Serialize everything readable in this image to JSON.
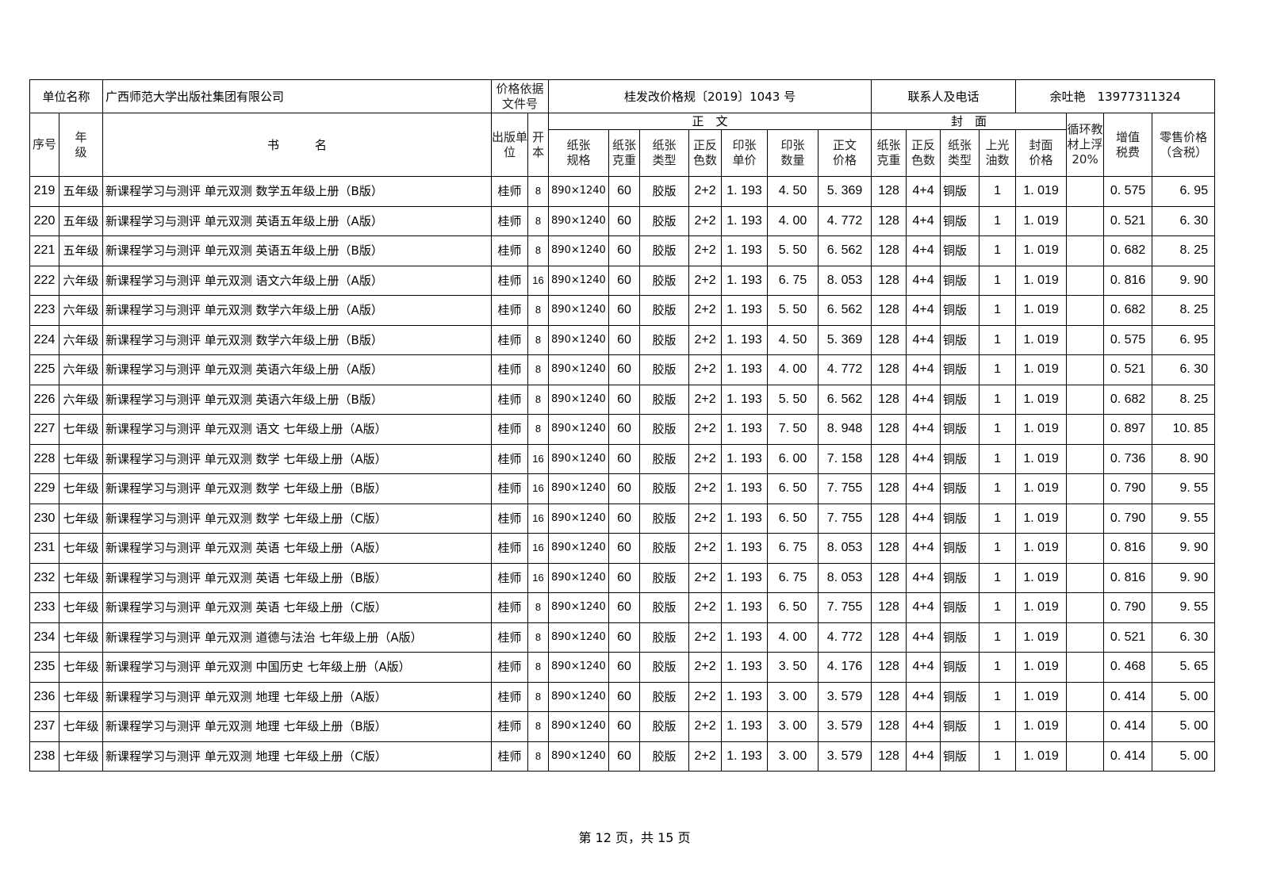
{
  "header": {
    "unit_label": "单位名称",
    "unit_value": "广西师范大学出版社集团有限公司",
    "price_basis_label": "价格依据文件号",
    "price_basis_value": "桂发改价格规〔2019〕1043 号",
    "contact_label": "联系人及电话",
    "contact_value": "余吐艳　13977311324"
  },
  "columns": {
    "seq": "序号",
    "grade": "年级",
    "title": "书　　　名",
    "publisher": "出版单位",
    "format": "开本",
    "body_group": "正　文",
    "cover_group": "封　面",
    "paper_size": "纸张规格",
    "paper_weight": "纸张克重",
    "paper_type": "纸张类型",
    "colors": "正反色数",
    "sheet_price": "印张单价",
    "sheet_count": "印张数量",
    "body_price": "正文价格",
    "cover_weight": "纸张克重",
    "cover_colors": "正反色数",
    "cover_type": "纸张类型",
    "varnish": "上光油数",
    "cover_price": "封面价格",
    "recycle": "循环教材上浮20%",
    "vat": "增值税费",
    "retail": "零售价格（含税）"
  },
  "rows": [
    [
      "219",
      "五年级",
      "新课程学习与测评  单元双测  数学五年级上册（B版）",
      "桂师",
      "8",
      "890×1240",
      "60",
      "胶版",
      "2+2",
      "1. 193",
      "4. 50",
      "5. 369",
      "128",
      "4+4",
      "铜版",
      "1",
      "1. 019",
      "",
      "0. 575",
      "6. 95"
    ],
    [
      "220",
      "五年级",
      "新课程学习与测评  单元双测  英语五年级上册（A版）",
      "桂师",
      "8",
      "890×1240",
      "60",
      "胶版",
      "2+2",
      "1. 193",
      "4. 00",
      "4. 772",
      "128",
      "4+4",
      "铜版",
      "1",
      "1. 019",
      "",
      "0. 521",
      "6. 30"
    ],
    [
      "221",
      "五年级",
      "新课程学习与测评  单元双测  英语五年级上册（B版）",
      "桂师",
      "8",
      "890×1240",
      "60",
      "胶版",
      "2+2",
      "1. 193",
      "5. 50",
      "6. 562",
      "128",
      "4+4",
      "铜版",
      "1",
      "1. 019",
      "",
      "0. 682",
      "8. 25"
    ],
    [
      "222",
      "六年级",
      "新课程学习与测评  单元双测  语文六年级上册（A版）",
      "桂师",
      "16",
      "890×1240",
      "60",
      "胶版",
      "2+2",
      "1. 193",
      "6. 75",
      "8. 053",
      "128",
      "4+4",
      "铜版",
      "1",
      "1. 019",
      "",
      "0. 816",
      "9. 90"
    ],
    [
      "223",
      "六年级",
      "新课程学习与测评  单元双测  数学六年级上册（A版）",
      "桂师",
      "8",
      "890×1240",
      "60",
      "胶版",
      "2+2",
      "1. 193",
      "5. 50",
      "6. 562",
      "128",
      "4+4",
      "铜版",
      "1",
      "1. 019",
      "",
      "0. 682",
      "8. 25"
    ],
    [
      "224",
      "六年级",
      "新课程学习与测评  单元双测  数学六年级上册（B版）",
      "桂师",
      "8",
      "890×1240",
      "60",
      "胶版",
      "2+2",
      "1. 193",
      "4. 50",
      "5. 369",
      "128",
      "4+4",
      "铜版",
      "1",
      "1. 019",
      "",
      "0. 575",
      "6. 95"
    ],
    [
      "225",
      "六年级",
      "新课程学习与测评  单元双测  英语六年级上册（A版）",
      "桂师",
      "8",
      "890×1240",
      "60",
      "胶版",
      "2+2",
      "1. 193",
      "4. 00",
      "4. 772",
      "128",
      "4+4",
      "铜版",
      "1",
      "1. 019",
      "",
      "0. 521",
      "6. 30"
    ],
    [
      "226",
      "六年级",
      "新课程学习与测评  单元双测  英语六年级上册（B版）",
      "桂师",
      "8",
      "890×1240",
      "60",
      "胶版",
      "2+2",
      "1. 193",
      "5. 50",
      "6. 562",
      "128",
      "4+4",
      "铜版",
      "1",
      "1. 019",
      "",
      "0. 682",
      "8. 25"
    ],
    [
      "227",
      "七年级",
      "新课程学习与测评  单元双测  语文  七年级上册（A版）",
      "桂师",
      "8",
      "890×1240",
      "60",
      "胶版",
      "2+2",
      "1. 193",
      "7. 50",
      "8. 948",
      "128",
      "4+4",
      "铜版",
      "1",
      "1. 019",
      "",
      "0. 897",
      "10. 85"
    ],
    [
      "228",
      "七年级",
      "新课程学习与测评  单元双测  数学  七年级上册（A版）",
      "桂师",
      "16",
      "890×1240",
      "60",
      "胶版",
      "2+2",
      "1. 193",
      "6. 00",
      "7. 158",
      "128",
      "4+4",
      "铜版",
      "1",
      "1. 019",
      "",
      "0. 736",
      "8. 90"
    ],
    [
      "229",
      "七年级",
      "新课程学习与测评  单元双测  数学  七年级上册（B版）",
      "桂师",
      "16",
      "890×1240",
      "60",
      "胶版",
      "2+2",
      "1. 193",
      "6. 50",
      "7. 755",
      "128",
      "4+4",
      "铜版",
      "1",
      "1. 019",
      "",
      "0. 790",
      "9. 55"
    ],
    [
      "230",
      "七年级",
      "新课程学习与测评  单元双测  数学  七年级上册（C版）",
      "桂师",
      "16",
      "890×1240",
      "60",
      "胶版",
      "2+2",
      "1. 193",
      "6. 50",
      "7. 755",
      "128",
      "4+4",
      "铜版",
      "1",
      "1. 019",
      "",
      "0. 790",
      "9. 55"
    ],
    [
      "231",
      "七年级",
      "新课程学习与测评  单元双测  英语  七年级上册（A版）",
      "桂师",
      "16",
      "890×1240",
      "60",
      "胶版",
      "2+2",
      "1. 193",
      "6. 75",
      "8. 053",
      "128",
      "4+4",
      "铜版",
      "1",
      "1. 019",
      "",
      "0. 816",
      "9. 90"
    ],
    [
      "232",
      "七年级",
      "新课程学习与测评  单元双测  英语  七年级上册（B版）",
      "桂师",
      "16",
      "890×1240",
      "60",
      "胶版",
      "2+2",
      "1. 193",
      "6. 75",
      "8. 053",
      "128",
      "4+4",
      "铜版",
      "1",
      "1. 019",
      "",
      "0. 816",
      "9. 90"
    ],
    [
      "233",
      "七年级",
      "新课程学习与测评  单元双测  英语  七年级上册（C版）",
      "桂师",
      "8",
      "890×1240",
      "60",
      "胶版",
      "2+2",
      "1. 193",
      "6. 50",
      "7. 755",
      "128",
      "4+4",
      "铜版",
      "1",
      "1. 019",
      "",
      "0. 790",
      "9. 55"
    ],
    [
      "234",
      "七年级",
      "新课程学习与测评  单元双测  道德与法治  七年级上册（A版）",
      "桂师",
      "8",
      "890×1240",
      "60",
      "胶版",
      "2+2",
      "1. 193",
      "4. 00",
      "4. 772",
      "128",
      "4+4",
      "铜版",
      "1",
      "1. 019",
      "",
      "0. 521",
      "6. 30"
    ],
    [
      "235",
      "七年级",
      "新课程学习与测评  单元双测  中国历史  七年级上册（A版）",
      "桂师",
      "8",
      "890×1240",
      "60",
      "胶版",
      "2+2",
      "1. 193",
      "3. 50",
      "4. 176",
      "128",
      "4+4",
      "铜版",
      "1",
      "1. 019",
      "",
      "0. 468",
      "5. 65"
    ],
    [
      "236",
      "七年级",
      "新课程学习与测评  单元双测  地理  七年级上册（A版）",
      "桂师",
      "8",
      "890×1240",
      "60",
      "胶版",
      "2+2",
      "1. 193",
      "3. 00",
      "3. 579",
      "128",
      "4+4",
      "铜版",
      "1",
      "1. 019",
      "",
      "0. 414",
      "5. 00"
    ],
    [
      "237",
      "七年级",
      "新课程学习与测评  单元双测  地理  七年级上册（B版）",
      "桂师",
      "8",
      "890×1240",
      "60",
      "胶版",
      "2+2",
      "1. 193",
      "3. 00",
      "3. 579",
      "128",
      "4+4",
      "铜版",
      "1",
      "1. 019",
      "",
      "0. 414",
      "5. 00"
    ],
    [
      "238",
      "七年级",
      "新课程学习与测评  单元双测  地理  七年级上册（C版）",
      "桂师",
      "8",
      "890×1240",
      "60",
      "胶版",
      "2+2",
      "1. 193",
      "3. 00",
      "3. 579",
      "128",
      "4+4",
      "铜版",
      "1",
      "1. 019",
      "",
      "0. 414",
      "5. 00"
    ]
  ],
  "footer": {
    "page_text": "第 12 页，共 15 页"
  }
}
